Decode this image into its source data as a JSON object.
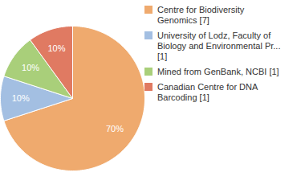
{
  "chart_data": {
    "type": "pie",
    "categories": [
      "Centre for Biodiversity Genomics [7]",
      "University of Lodz, Faculty of Biology and Environmental Pr... [1]",
      "Mined from GenBank, NCBI [1]",
      "Canadian Centre for DNA Barcoding [1]"
    ],
    "values": [
      70,
      10,
      10,
      10
    ],
    "value_labels": [
      "70%",
      "10%",
      "10%",
      "10%"
    ],
    "colors": [
      "#efaa6e",
      "#a3bfe2",
      "#a9cf7a",
      "#e07a62"
    ],
    "data_labels": true,
    "legend": "right"
  }
}
